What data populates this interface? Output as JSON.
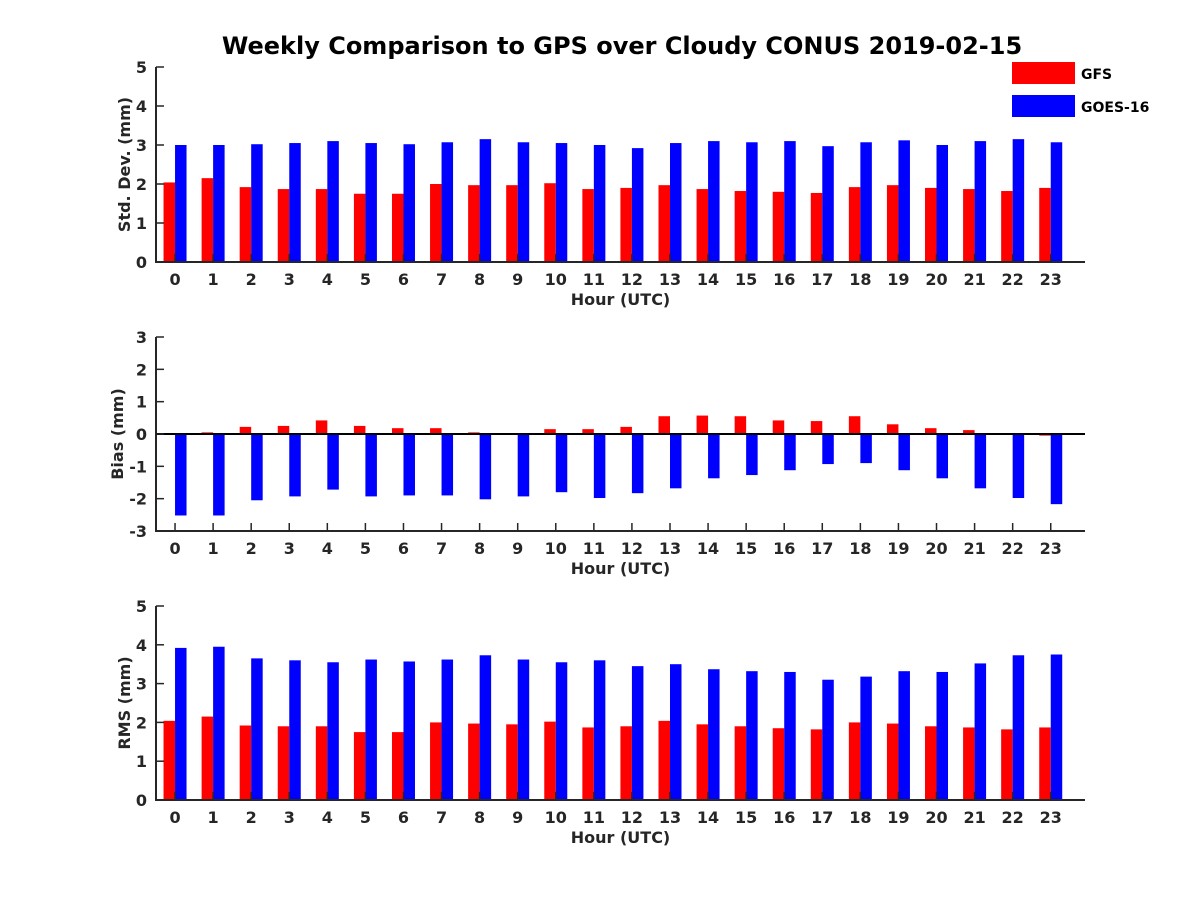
{
  "title": "Weekly Comparison to GPS over Cloudy CONUS 2019-02-15",
  "legend": {
    "placement": "top-right",
    "entries": [
      {
        "name": "GFS",
        "color": "#ff0000"
      },
      {
        "name": "GOES-16",
        "color": "#0000ff"
      }
    ]
  },
  "chart_data": [
    {
      "type": "bar",
      "xlabel": "Hour (UTC)",
      "ylabel": "Std. Dev. (mm)",
      "ylim": [
        0,
        5
      ],
      "yticks": [
        "0",
        "1",
        "2",
        "3",
        "4",
        "5"
      ],
      "categories": [
        "0",
        "1",
        "2",
        "3",
        "4",
        "5",
        "6",
        "7",
        "8",
        "9",
        "10",
        "11",
        "12",
        "13",
        "14",
        "15",
        "16",
        "17",
        "18",
        "19",
        "20",
        "21",
        "22",
        "23"
      ],
      "series": [
        {
          "name": "GFS",
          "color": "#ff0000",
          "values": [
            2.04,
            2.15,
            1.92,
            1.87,
            1.87,
            1.75,
            1.75,
            2.0,
            1.97,
            1.97,
            2.02,
            1.87,
            1.9,
            1.97,
            1.87,
            1.82,
            1.8,
            1.77,
            1.92,
            1.97,
            1.9,
            1.87,
            1.82,
            1.9
          ]
        },
        {
          "name": "GOES-16",
          "color": "#0000ff",
          "values": [
            3.0,
            3.0,
            3.02,
            3.05,
            3.1,
            3.05,
            3.02,
            3.07,
            3.15,
            3.07,
            3.05,
            3.0,
            2.92,
            3.05,
            3.1,
            3.07,
            3.1,
            2.97,
            3.07,
            3.12,
            3.0,
            3.1,
            3.15,
            3.07
          ]
        }
      ]
    },
    {
      "type": "bar",
      "xlabel": "Hour (UTC)",
      "ylabel": "Bias (mm)",
      "ylim": [
        -3,
        3
      ],
      "yticks": [
        "-3",
        "-2",
        "-1",
        "0",
        "1",
        "2",
        "3"
      ],
      "categories": [
        "0",
        "1",
        "2",
        "3",
        "4",
        "5",
        "6",
        "7",
        "8",
        "9",
        "10",
        "11",
        "12",
        "13",
        "14",
        "15",
        "16",
        "17",
        "18",
        "19",
        "20",
        "21",
        "22",
        "23"
      ],
      "series": [
        {
          "name": "GFS",
          "color": "#ff0000",
          "values": [
            -0.02,
            0.05,
            0.22,
            0.25,
            0.42,
            0.25,
            0.18,
            0.18,
            0.05,
            -0.02,
            0.15,
            0.15,
            0.22,
            0.55,
            0.57,
            0.55,
            0.42,
            0.4,
            0.55,
            0.3,
            0.18,
            0.12,
            -0.02,
            -0.05
          ]
        },
        {
          "name": "GOES-16",
          "color": "#0000ff",
          "values": [
            -2.52,
            -2.52,
            -2.05,
            -1.93,
            -1.72,
            -1.93,
            -1.9,
            -1.9,
            -2.02,
            -1.93,
            -1.8,
            -1.98,
            -1.83,
            -1.68,
            -1.37,
            -1.27,
            -1.12,
            -0.93,
            -0.9,
            -1.12,
            -1.37,
            -1.68,
            -1.98,
            -2.17
          ]
        }
      ]
    },
    {
      "type": "bar",
      "xlabel": "Hour (UTC)",
      "ylabel": "RMS (mm)",
      "ylim": [
        0,
        5
      ],
      "yticks": [
        "0",
        "1",
        "2",
        "3",
        "4",
        "5"
      ],
      "categories": [
        "0",
        "1",
        "2",
        "3",
        "4",
        "5",
        "6",
        "7",
        "8",
        "9",
        "10",
        "11",
        "12",
        "13",
        "14",
        "15",
        "16",
        "17",
        "18",
        "19",
        "20",
        "21",
        "22",
        "23"
      ],
      "series": [
        {
          "name": "GFS",
          "color": "#ff0000",
          "values": [
            2.04,
            2.15,
            1.92,
            1.9,
            1.9,
            1.75,
            1.75,
            2.0,
            1.97,
            1.95,
            2.02,
            1.87,
            1.9,
            2.04,
            1.95,
            1.9,
            1.85,
            1.82,
            2.0,
            1.97,
            1.9,
            1.87,
            1.82,
            1.87
          ]
        },
        {
          "name": "GOES-16",
          "color": "#0000ff",
          "values": [
            3.92,
            3.95,
            3.65,
            3.6,
            3.55,
            3.62,
            3.57,
            3.62,
            3.73,
            3.62,
            3.55,
            3.6,
            3.45,
            3.5,
            3.37,
            3.32,
            3.3,
            3.1,
            3.18,
            3.32,
            3.3,
            3.52,
            3.73,
            3.75
          ]
        }
      ]
    }
  ]
}
